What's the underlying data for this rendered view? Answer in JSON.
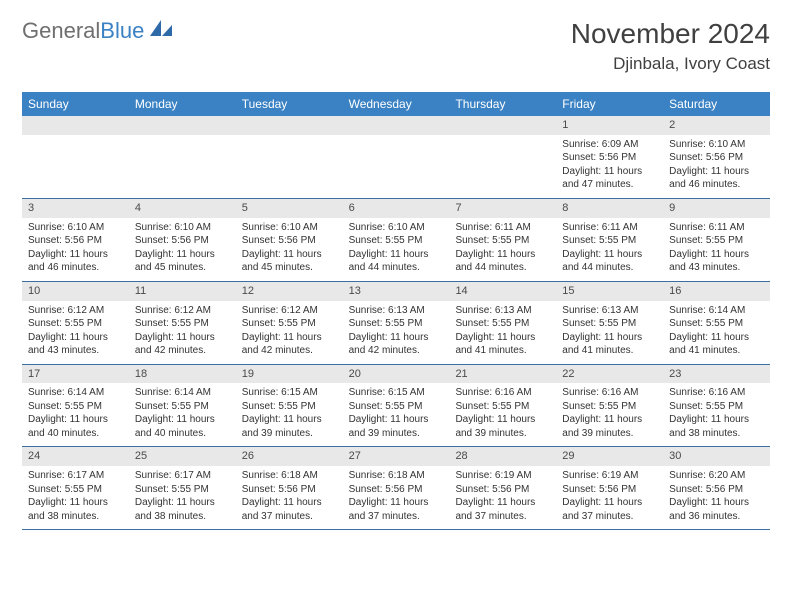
{
  "logo": {
    "word1": "General",
    "word2": "Blue"
  },
  "title": {
    "month": "November 2024",
    "location": "Djinbala, Ivory Coast"
  },
  "colors": {
    "header_bg": "#3b82c4",
    "header_text": "#ffffff",
    "daynum_bg": "#e8e8e8",
    "week_border": "#3b6fa0",
    "logo_gray": "#6f6f6f",
    "logo_blue": "#3b82c4",
    "body_text": "#333333"
  },
  "day_names": [
    "Sunday",
    "Monday",
    "Tuesday",
    "Wednesday",
    "Thursday",
    "Friday",
    "Saturday"
  ],
  "weeks": [
    [
      null,
      null,
      null,
      null,
      null,
      {
        "n": "1",
        "sr": "Sunrise: 6:09 AM",
        "ss": "Sunset: 5:56 PM",
        "d1": "Daylight: 11 hours",
        "d2": "and 47 minutes."
      },
      {
        "n": "2",
        "sr": "Sunrise: 6:10 AM",
        "ss": "Sunset: 5:56 PM",
        "d1": "Daylight: 11 hours",
        "d2": "and 46 minutes."
      }
    ],
    [
      {
        "n": "3",
        "sr": "Sunrise: 6:10 AM",
        "ss": "Sunset: 5:56 PM",
        "d1": "Daylight: 11 hours",
        "d2": "and 46 minutes."
      },
      {
        "n": "4",
        "sr": "Sunrise: 6:10 AM",
        "ss": "Sunset: 5:56 PM",
        "d1": "Daylight: 11 hours",
        "d2": "and 45 minutes."
      },
      {
        "n": "5",
        "sr": "Sunrise: 6:10 AM",
        "ss": "Sunset: 5:56 PM",
        "d1": "Daylight: 11 hours",
        "d2": "and 45 minutes."
      },
      {
        "n": "6",
        "sr": "Sunrise: 6:10 AM",
        "ss": "Sunset: 5:55 PM",
        "d1": "Daylight: 11 hours",
        "d2": "and 44 minutes."
      },
      {
        "n": "7",
        "sr": "Sunrise: 6:11 AM",
        "ss": "Sunset: 5:55 PM",
        "d1": "Daylight: 11 hours",
        "d2": "and 44 minutes."
      },
      {
        "n": "8",
        "sr": "Sunrise: 6:11 AM",
        "ss": "Sunset: 5:55 PM",
        "d1": "Daylight: 11 hours",
        "d2": "and 44 minutes."
      },
      {
        "n": "9",
        "sr": "Sunrise: 6:11 AM",
        "ss": "Sunset: 5:55 PM",
        "d1": "Daylight: 11 hours",
        "d2": "and 43 minutes."
      }
    ],
    [
      {
        "n": "10",
        "sr": "Sunrise: 6:12 AM",
        "ss": "Sunset: 5:55 PM",
        "d1": "Daylight: 11 hours",
        "d2": "and 43 minutes."
      },
      {
        "n": "11",
        "sr": "Sunrise: 6:12 AM",
        "ss": "Sunset: 5:55 PM",
        "d1": "Daylight: 11 hours",
        "d2": "and 42 minutes."
      },
      {
        "n": "12",
        "sr": "Sunrise: 6:12 AM",
        "ss": "Sunset: 5:55 PM",
        "d1": "Daylight: 11 hours",
        "d2": "and 42 minutes."
      },
      {
        "n": "13",
        "sr": "Sunrise: 6:13 AM",
        "ss": "Sunset: 5:55 PM",
        "d1": "Daylight: 11 hours",
        "d2": "and 42 minutes."
      },
      {
        "n": "14",
        "sr": "Sunrise: 6:13 AM",
        "ss": "Sunset: 5:55 PM",
        "d1": "Daylight: 11 hours",
        "d2": "and 41 minutes."
      },
      {
        "n": "15",
        "sr": "Sunrise: 6:13 AM",
        "ss": "Sunset: 5:55 PM",
        "d1": "Daylight: 11 hours",
        "d2": "and 41 minutes."
      },
      {
        "n": "16",
        "sr": "Sunrise: 6:14 AM",
        "ss": "Sunset: 5:55 PM",
        "d1": "Daylight: 11 hours",
        "d2": "and 41 minutes."
      }
    ],
    [
      {
        "n": "17",
        "sr": "Sunrise: 6:14 AM",
        "ss": "Sunset: 5:55 PM",
        "d1": "Daylight: 11 hours",
        "d2": "and 40 minutes."
      },
      {
        "n": "18",
        "sr": "Sunrise: 6:14 AM",
        "ss": "Sunset: 5:55 PM",
        "d1": "Daylight: 11 hours",
        "d2": "and 40 minutes."
      },
      {
        "n": "19",
        "sr": "Sunrise: 6:15 AM",
        "ss": "Sunset: 5:55 PM",
        "d1": "Daylight: 11 hours",
        "d2": "and 39 minutes."
      },
      {
        "n": "20",
        "sr": "Sunrise: 6:15 AM",
        "ss": "Sunset: 5:55 PM",
        "d1": "Daylight: 11 hours",
        "d2": "and 39 minutes."
      },
      {
        "n": "21",
        "sr": "Sunrise: 6:16 AM",
        "ss": "Sunset: 5:55 PM",
        "d1": "Daylight: 11 hours",
        "d2": "and 39 minutes."
      },
      {
        "n": "22",
        "sr": "Sunrise: 6:16 AM",
        "ss": "Sunset: 5:55 PM",
        "d1": "Daylight: 11 hours",
        "d2": "and 39 minutes."
      },
      {
        "n": "23",
        "sr": "Sunrise: 6:16 AM",
        "ss": "Sunset: 5:55 PM",
        "d1": "Daylight: 11 hours",
        "d2": "and 38 minutes."
      }
    ],
    [
      {
        "n": "24",
        "sr": "Sunrise: 6:17 AM",
        "ss": "Sunset: 5:55 PM",
        "d1": "Daylight: 11 hours",
        "d2": "and 38 minutes."
      },
      {
        "n": "25",
        "sr": "Sunrise: 6:17 AM",
        "ss": "Sunset: 5:55 PM",
        "d1": "Daylight: 11 hours",
        "d2": "and 38 minutes."
      },
      {
        "n": "26",
        "sr": "Sunrise: 6:18 AM",
        "ss": "Sunset: 5:56 PM",
        "d1": "Daylight: 11 hours",
        "d2": "and 37 minutes."
      },
      {
        "n": "27",
        "sr": "Sunrise: 6:18 AM",
        "ss": "Sunset: 5:56 PM",
        "d1": "Daylight: 11 hours",
        "d2": "and 37 minutes."
      },
      {
        "n": "28",
        "sr": "Sunrise: 6:19 AM",
        "ss": "Sunset: 5:56 PM",
        "d1": "Daylight: 11 hours",
        "d2": "and 37 minutes."
      },
      {
        "n": "29",
        "sr": "Sunrise: 6:19 AM",
        "ss": "Sunset: 5:56 PM",
        "d1": "Daylight: 11 hours",
        "d2": "and 37 minutes."
      },
      {
        "n": "30",
        "sr": "Sunrise: 6:20 AM",
        "ss": "Sunset: 5:56 PM",
        "d1": "Daylight: 11 hours",
        "d2": "and 36 minutes."
      }
    ]
  ]
}
